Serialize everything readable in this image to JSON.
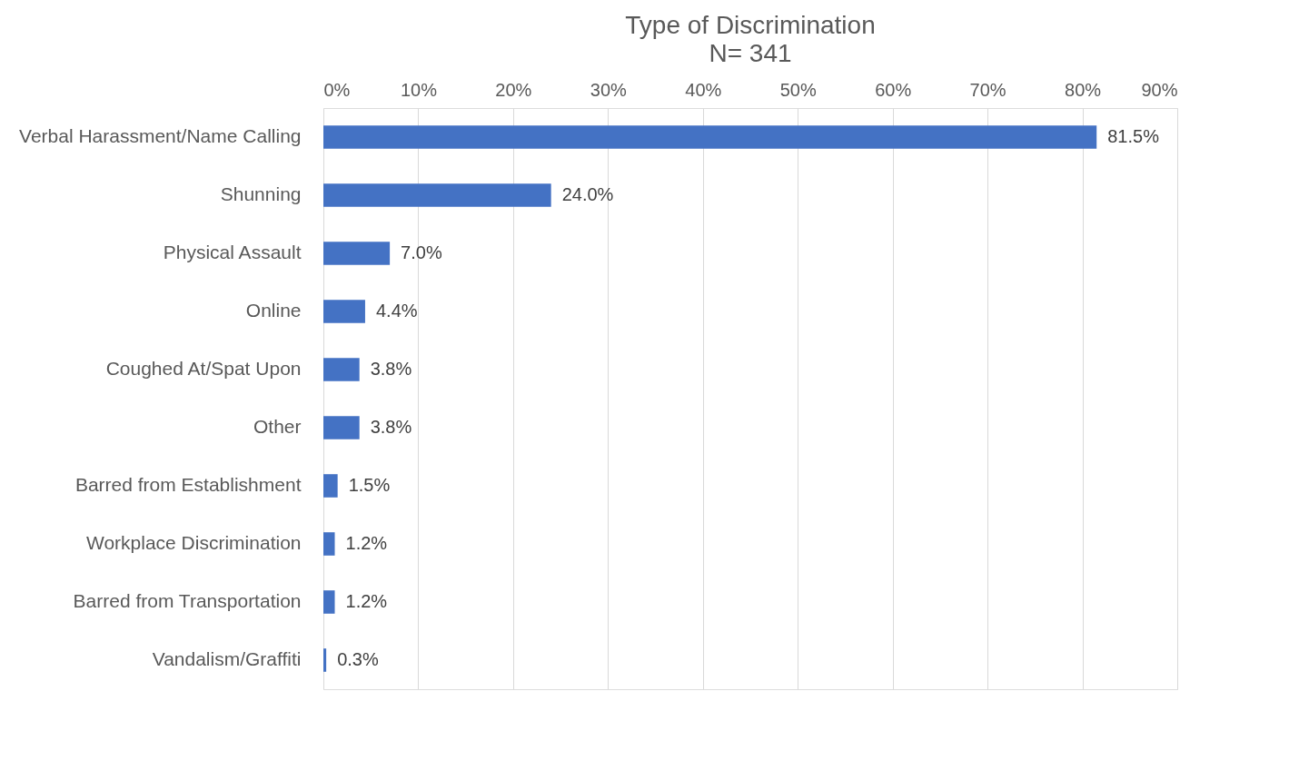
{
  "chart_data": {
    "type": "bar",
    "orientation": "horizontal",
    "title": "Type of Discrimination",
    "subtitle": "N= 341",
    "categories": [
      "Verbal Harassment/Name Calling",
      "Shunning",
      "Physical Assault",
      "Online",
      "Coughed At/Spat Upon",
      "Other",
      "Barred from Establishment",
      "Workplace Discrimination",
      "Barred from Transportation",
      "Vandalism/Graffiti"
    ],
    "values": [
      81.5,
      24.0,
      7.0,
      4.4,
      3.8,
      3.8,
      1.5,
      1.2,
      1.2,
      0.3
    ],
    "value_labels": [
      "81.5%",
      "24.0%",
      "7.0%",
      "4.4%",
      "3.8%",
      "3.8%",
      "1.5%",
      "1.2%",
      "1.2%",
      "0.3%"
    ],
    "color": "#4472c4",
    "xlim": [
      0,
      90
    ],
    "xticks": [
      {
        "value": 0,
        "label": "0%"
      },
      {
        "value": 10,
        "label": "10%"
      },
      {
        "value": 20,
        "label": "20%"
      },
      {
        "value": 30,
        "label": "30%"
      },
      {
        "value": 40,
        "label": "40%"
      },
      {
        "value": 50,
        "label": "50%"
      },
      {
        "value": 60,
        "label": "60%"
      },
      {
        "value": 70,
        "label": "70%"
      },
      {
        "value": 80,
        "label": "80%"
      },
      {
        "value": 90,
        "label": "90%"
      }
    ],
    "grid": "x"
  }
}
